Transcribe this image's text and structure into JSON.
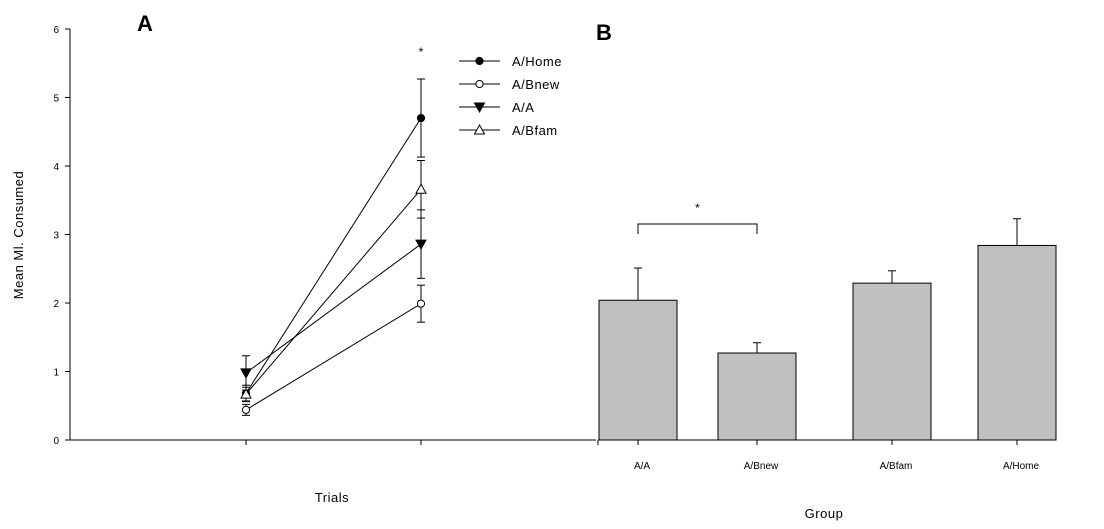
{
  "chart_data": [
    {
      "panel": "A",
      "type": "line",
      "xlabel": "Trials",
      "ylabel": "Mean Ml. Consumed",
      "ylim": [
        0,
        6
      ],
      "yticks": [
        "0",
        "1",
        "2",
        "3",
        "4",
        "5",
        "6"
      ],
      "x": [
        1,
        2
      ],
      "legend_position": "top-right",
      "significance_marker": "*",
      "series": [
        {
          "name": "A/Home",
          "marker": "filled-circle",
          "values": [
            0.68,
            4.7
          ],
          "errors": [
            0.12,
            0.57
          ]
        },
        {
          "name": "A/Bnew",
          "marker": "open-circle",
          "values": [
            0.44,
            1.99
          ],
          "errors": [
            0.08,
            0.27
          ]
        },
        {
          "name": "A/A",
          "marker": "filled-triangle-down",
          "values": [
            0.98,
            2.86
          ],
          "errors": [
            0.25,
            0.5
          ]
        },
        {
          "name": "A/Bfam",
          "marker": "open-triangle-up",
          "values": [
            0.67,
            3.66
          ],
          "errors": [
            0.1,
            0.42
          ]
        }
      ]
    },
    {
      "panel": "B",
      "type": "bar",
      "xlabel": "Group",
      "ylabel": "",
      "ylim": [
        0,
        6
      ],
      "categories": [
        "A/A",
        "A/Bnew",
        "A/Bfam",
        "A/Home"
      ],
      "values": [
        2.04,
        1.27,
        2.29,
        2.84
      ],
      "errors": [
        0.47,
        0.15,
        0.18,
        0.39
      ],
      "bar_color": "#c0c0c0",
      "significance_marker": "*",
      "significance_between": [
        "A/A",
        "A/Bnew"
      ]
    }
  ]
}
